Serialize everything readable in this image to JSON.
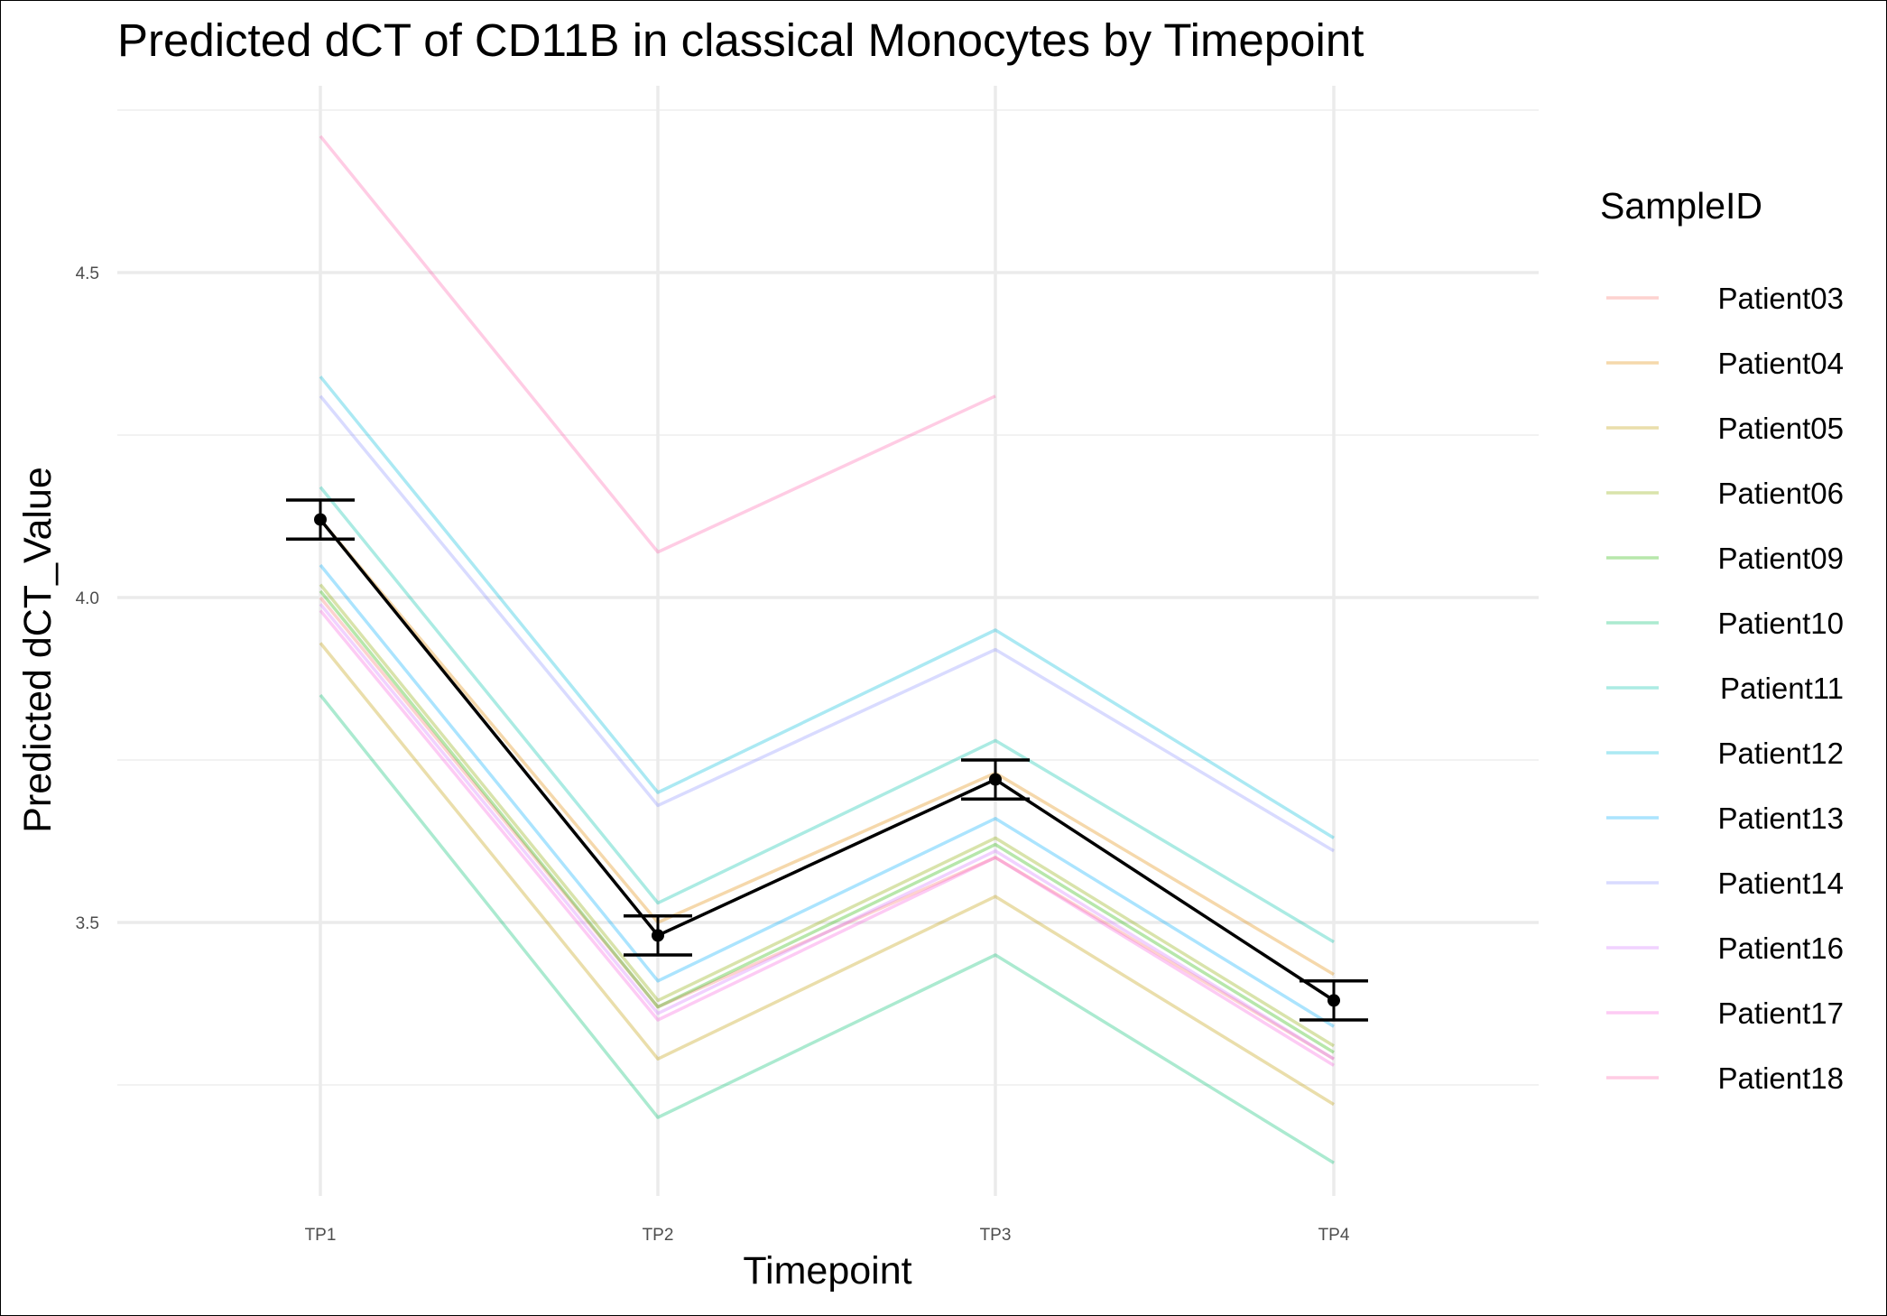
{
  "chart_data": {
    "type": "line",
    "title": "Predicted dCT of  CD11B in  classical  Monocytes by Timepoint",
    "xlabel": "Timepoint",
    "ylabel": "Predicted dCT_Value",
    "categories": [
      "TP1",
      "TP2",
      "TP3",
      "TP4"
    ],
    "ylim": [
      3.05,
      4.78
    ],
    "yticks": [
      3.5,
      4.0,
      4.5
    ],
    "ytick_labels": [
      "3.5",
      "4.0",
      "4.5"
    ],
    "grid": true,
    "legend": {
      "title": "SampleID",
      "position": "right"
    },
    "series": [
      {
        "name": "Patient03",
        "color": "#F8766D",
        "values": [
          4.0,
          3.37,
          3.6,
          3.29
        ]
      },
      {
        "name": "Patient04",
        "color": "#E18A00",
        "values": [
          4.12,
          3.5,
          3.73,
          3.42
        ]
      },
      {
        "name": "Patient05",
        "color": "#BE9C00",
        "values": [
          3.93,
          3.29,
          3.54,
          3.22
        ]
      },
      {
        "name": "Patient06",
        "color": "#8CAB00",
        "values": [
          4.02,
          3.38,
          3.63,
          3.31
        ]
      },
      {
        "name": "Patient09",
        "color": "#24B700",
        "values": [
          4.01,
          3.37,
          3.62,
          3.3
        ]
      },
      {
        "name": "Patient10",
        "color": "#00BE70",
        "values": [
          3.85,
          3.2,
          3.45,
          3.13
        ]
      },
      {
        "name": "Patient11",
        "color": "#00C1AB",
        "values": [
          4.17,
          3.53,
          3.78,
          3.47
        ]
      },
      {
        "name": "Patient12",
        "color": "#00BBDA",
        "values": [
          4.34,
          3.7,
          3.95,
          3.63
        ]
      },
      {
        "name": "Patient13",
        "color": "#00ACFC",
        "values": [
          4.05,
          3.41,
          3.66,
          3.34
        ]
      },
      {
        "name": "Patient14",
        "color": "#8B93FF",
        "values": [
          4.31,
          3.68,
          3.92,
          3.61
        ]
      },
      {
        "name": "Patient16",
        "color": "#D575FE",
        "values": [
          3.99,
          3.36,
          3.61,
          3.29
        ]
      },
      {
        "name": "Patient17",
        "color": "#F962DD",
        "values": [
          3.98,
          3.35,
          3.6,
          3.28
        ]
      },
      {
        "name": "Patient18",
        "color": "#FF65AC",
        "values": [
          4.71,
          4.07,
          4.31,
          null
        ]
      }
    ],
    "mean_series": {
      "color": "#000000",
      "values": [
        4.12,
        3.48,
        3.72,
        3.38
      ],
      "error_low": [
        4.09,
        3.45,
        3.69,
        3.35
      ],
      "error_high": [
        4.15,
        3.51,
        3.75,
        3.41
      ]
    }
  }
}
